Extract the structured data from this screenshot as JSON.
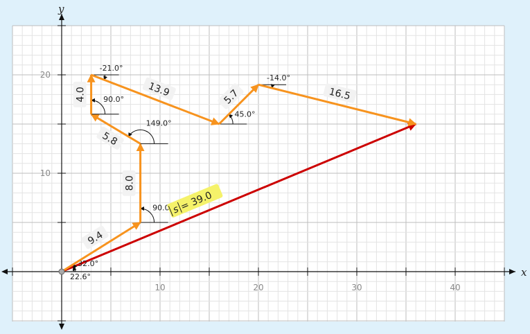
{
  "axes": {
    "x_label": "x",
    "y_label": "y"
  },
  "ticks": {
    "x": [
      {
        "value": 10,
        "label": "10"
      },
      {
        "value": 20,
        "label": "20"
      },
      {
        "value": 30,
        "label": "30"
      },
      {
        "value": 40,
        "label": "40"
      }
    ],
    "y": [
      {
        "value": 10,
        "label": "10"
      },
      {
        "value": 20,
        "label": "20"
      }
    ]
  },
  "colors": {
    "component": "#f7931e",
    "resultant": "#cc0000",
    "label_bg": "#f2f2f2",
    "result_bg": "#f5f26a"
  },
  "vectors": [
    {
      "from": [
        0,
        0
      ],
      "to": [
        8,
        5
      ],
      "magnitude": "9.4",
      "angle": "32.0°"
    },
    {
      "from": [
        8,
        5
      ],
      "to": [
        8,
        13
      ],
      "magnitude": "8.0",
      "angle": "90.0°"
    },
    {
      "from": [
        8,
        13
      ],
      "to": [
        3,
        16
      ],
      "magnitude": "5.8",
      "angle": "149.0°"
    },
    {
      "from": [
        3,
        16
      ],
      "to": [
        3,
        20
      ],
      "magnitude": "4.0",
      "angle": "90.0°"
    },
    {
      "from": [
        3,
        20
      ],
      "to": [
        16,
        15
      ],
      "magnitude": "13.9",
      "angle": "-21.0°"
    },
    {
      "from": [
        16,
        15
      ],
      "to": [
        20,
        19
      ],
      "magnitude": "5.7",
      "angle": "45.0°"
    },
    {
      "from": [
        20,
        19
      ],
      "to": [
        36,
        15
      ],
      "magnitude": "16.5",
      "angle": "-14.0°"
    }
  ],
  "resultant": {
    "from": [
      0,
      0
    ],
    "to": [
      36,
      15
    ],
    "label_text": " = 39.0",
    "vector_symbol": "s",
    "angle": "22.6°"
  }
}
